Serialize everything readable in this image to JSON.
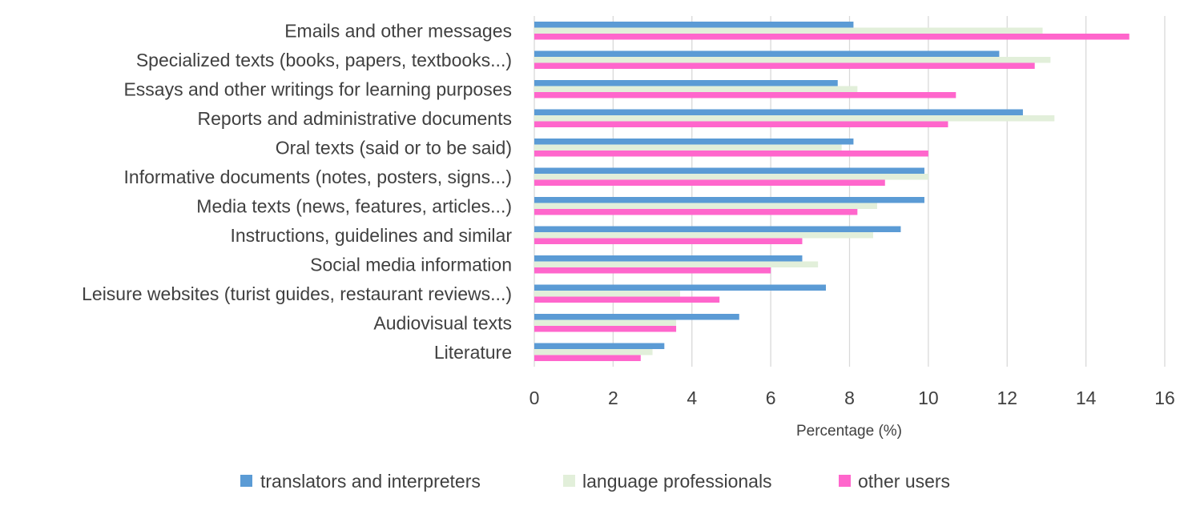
{
  "chart_data": {
    "type": "bar",
    "orientation": "horizontal",
    "categories": [
      "Emails and other messages",
      "Specialized texts (books, papers, textbooks...)",
      "Essays and other writings for learning purposes",
      "Reports and administrative documents",
      "Oral texts (said or to be said)",
      "Informative documents (notes, posters, signs...)",
      "Media texts (news, features, articles...)",
      "Instructions, guidelines and similar",
      "Social media information",
      "Leisure websites (turist guides, restaurant reviews...)",
      "Audiovisual texts",
      "Literature"
    ],
    "series": [
      {
        "name": "translators and interpreters",
        "color": "#5b9bd5",
        "values": [
          8.1,
          11.8,
          7.7,
          12.4,
          8.1,
          9.9,
          9.9,
          9.3,
          6.8,
          7.4,
          5.2,
          3.3
        ]
      },
      {
        "name": "language professionals",
        "color": "#e2efda",
        "values": [
          12.9,
          13.1,
          8.2,
          13.2,
          7.8,
          10.0,
          8.7,
          8.6,
          7.2,
          3.7,
          3.6,
          3.0
        ]
      },
      {
        "name": "other users",
        "color": "#ff66cc",
        "values": [
          15.1,
          12.7,
          10.7,
          10.5,
          10.0,
          8.9,
          8.2,
          6.8,
          6.0,
          4.7,
          3.6,
          2.7
        ]
      }
    ],
    "xlabel": "Percentage (%)",
    "ylabel": "",
    "xlim": [
      0,
      16
    ],
    "xticks": [
      "0",
      "2",
      "4",
      "6",
      "8",
      "10",
      "12",
      "14",
      "16"
    ],
    "grid": "vertical",
    "legend": "bottom"
  }
}
